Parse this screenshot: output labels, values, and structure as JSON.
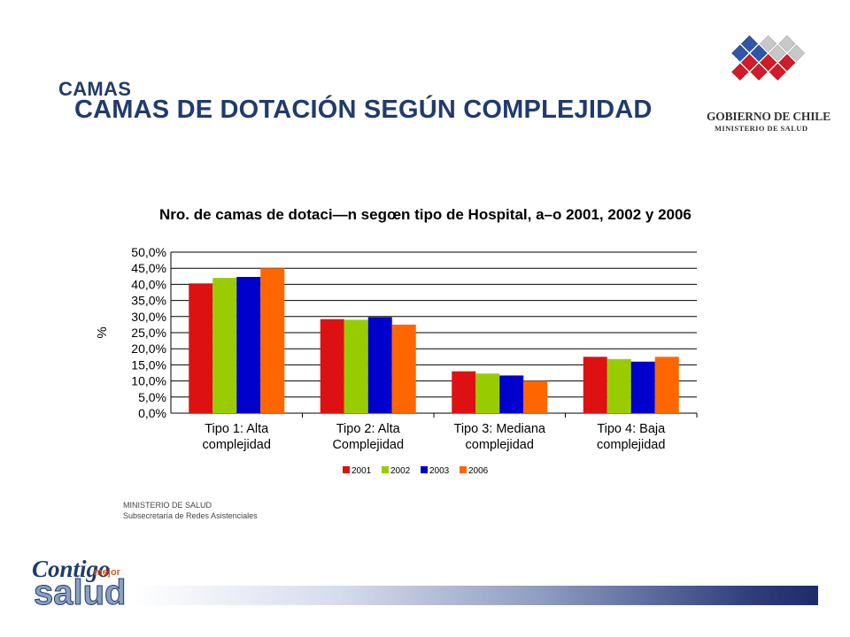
{
  "header": {
    "kicker": "CAMAS",
    "title": "CAMAS DE DOTACIÓN SEGÚN COMPLEJIDAD"
  },
  "logo": {
    "name": "GOBIERNO DE CHILE",
    "sub": "MINISTERIO DE SALUD"
  },
  "footer": {
    "line1": "MINISTERIO DE SALUD",
    "line2": "Subsecretaría de Redes Asistenciales"
  },
  "brand": {
    "contigo": "Contigo",
    "mejor": "mejor",
    "salud": "salud"
  },
  "colors": {
    "heading": "#1f3b6e",
    "series_2001": "#dd1111",
    "series_2002": "#99cc00",
    "series_2003": "#0000cc",
    "series_2006": "#ff6600"
  },
  "chart_data": {
    "type": "bar",
    "title": "Nro. de camas de dotaci—n segœn tipo de Hospital, a–o 2001, 2002 y 2006",
    "xlabel": "",
    "ylabel": "%",
    "ylim": [
      0,
      50
    ],
    "yticks": [
      "0,0%",
      "5,0%",
      "10,0%",
      "15,0%",
      "20,0%",
      "25,0%",
      "30,0%",
      "35,0%",
      "40,0%",
      "45,0%",
      "50,0%"
    ],
    "grid": true,
    "legend_position": "bottom",
    "categories": [
      [
        "Tipo 1: Alta",
        "complejidad"
      ],
      [
        "Tipo 2: Alta",
        "Complejidad"
      ],
      [
        "Tipo 3: Mediana",
        "complejidad"
      ],
      [
        "Tipo 4: Baja",
        "complejidad"
      ]
    ],
    "series": [
      {
        "name": "2001",
        "color": "#dd1111",
        "values": [
          40.3,
          29.2,
          13.0,
          17.5
        ]
      },
      {
        "name": "2002",
        "color": "#99cc00",
        "values": [
          42.0,
          29.0,
          12.3,
          16.8
        ]
      },
      {
        "name": "2003",
        "color": "#0000cc",
        "values": [
          42.3,
          29.8,
          11.7,
          16.0
        ]
      },
      {
        "name": "2006",
        "color": "#ff6600",
        "values": [
          45.0,
          27.5,
          10.0,
          17.5
        ]
      }
    ]
  }
}
